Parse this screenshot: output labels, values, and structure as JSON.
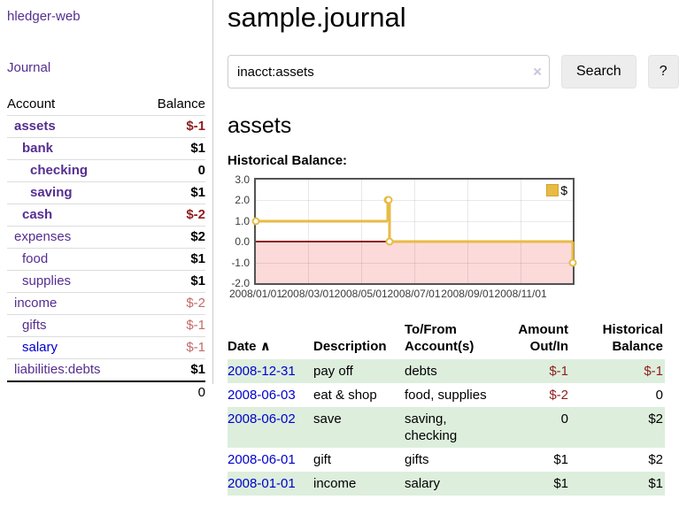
{
  "colors": {
    "link_purple": "#552e91",
    "link_blue": "#0000cc",
    "negative_strong": "#8f1d1d",
    "negative_light": "#c46a6a",
    "row_green": "#ddeedd",
    "chart_line": "#e8bb45",
    "chart_negative_fill": "#fcdada",
    "chart_zero_line": "#8b1a1a",
    "chart_border": "#545454"
  },
  "sidebar": {
    "app_title": "hledger-web",
    "journal_link": "Journal",
    "accounts_table": {
      "headers": {
        "account": "Account",
        "balance": "Balance"
      },
      "rows": [
        {
          "name": "assets",
          "balance": "$-1",
          "bold": true,
          "indent": 8,
          "neg": "strong"
        },
        {
          "name": "bank",
          "balance": "$1",
          "bold": true,
          "indent": 17
        },
        {
          "name": "checking",
          "balance": "0",
          "bold": true,
          "indent": 26
        },
        {
          "name": "saving",
          "balance": "$1",
          "bold": true,
          "indent": 26
        },
        {
          "name": "cash",
          "balance": "$-2",
          "bold": true,
          "indent": 17,
          "neg": "strong"
        },
        {
          "name": "expenses",
          "balance": "$2",
          "bold": false,
          "indent": 8
        },
        {
          "name": "food",
          "balance": "$1",
          "bold": false,
          "indent": 17
        },
        {
          "name": "supplies",
          "balance": "$1",
          "bold": false,
          "indent": 17
        },
        {
          "name": "income",
          "balance": "$-2",
          "bold": false,
          "indent": 8,
          "neg": "light"
        },
        {
          "name": "gifts",
          "balance": "$-1",
          "bold": false,
          "indent": 17,
          "neg": "light"
        },
        {
          "name": "salary",
          "balance": "$-1",
          "bold": false,
          "indent": 17,
          "neg": "light",
          "link_color": "blue"
        },
        {
          "name": "liabilities:debts",
          "balance": "$1",
          "bold": false,
          "indent": 8
        }
      ],
      "total": "0"
    }
  },
  "main": {
    "title": "sample.journal",
    "search": {
      "value": "inacct:assets",
      "clear_icon": "×",
      "search_button": "Search",
      "help_button": "?"
    },
    "account_heading": "assets",
    "chart_label": "Historical Balance:",
    "register_table": {
      "headers": [
        "Date",
        "Description",
        "To/From Account(s)",
        "Amount Out/In",
        "Historical Balance"
      ],
      "sort": {
        "column": "Date",
        "direction": "ascending",
        "icon": "∧"
      },
      "rows": [
        {
          "date": "2008-12-31",
          "description": "pay off",
          "accounts": "debts",
          "amount": "$-1",
          "balance": "$-1"
        },
        {
          "date": "2008-06-03",
          "description": "eat & shop",
          "accounts": "food, supplies",
          "amount": "$-2",
          "balance": "0"
        },
        {
          "date": "2008-06-02",
          "description": "save",
          "accounts": "saving, checking",
          "amount": "0",
          "balance": "$2"
        },
        {
          "date": "2008-06-01",
          "description": "gift",
          "accounts": "gifts",
          "amount": "$1",
          "balance": "$2"
        },
        {
          "date": "2008-01-01",
          "description": "income",
          "accounts": "salary",
          "amount": "$1",
          "balance": "$1"
        }
      ]
    }
  },
  "chart_data": {
    "type": "line",
    "step": true,
    "title": "Historical Balance:",
    "series": [
      {
        "name": "$",
        "color": "#e8bb45",
        "points": [
          [
            "2008-01-01",
            1
          ],
          [
            "2008-06-01",
            2
          ],
          [
            "2008-06-02",
            2
          ],
          [
            "2008-06-03",
            0
          ],
          [
            "2008-12-31",
            -1
          ]
        ]
      }
    ],
    "xlim": [
      "2008-01-01",
      "2008-12-31"
    ],
    "ylim": [
      -2,
      3
    ],
    "x_ticks": [
      "2008/01/01",
      "2008/03/01",
      "2008/05/01",
      "2008/07/01",
      "2008/09/01",
      "2008/11/01"
    ],
    "y_ticks": [
      3.0,
      2.0,
      1.0,
      0.0,
      -1.0,
      -2.0
    ],
    "grid": true,
    "legend": {
      "label": "$",
      "position": "top-right"
    },
    "negative_region": {
      "from": -2,
      "to": 0,
      "fill": "#fcdada",
      "zero_line": "#8b1a1a"
    }
  }
}
